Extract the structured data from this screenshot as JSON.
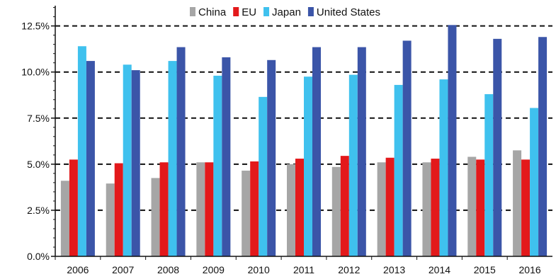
{
  "chart_data": {
    "type": "bar",
    "title": "",
    "xlabel": "",
    "ylabel": "",
    "categories": [
      "2006",
      "2007",
      "2008",
      "2009",
      "2010",
      "2011",
      "2012",
      "2013",
      "2014",
      "2015",
      "2016"
    ],
    "series": [
      {
        "name": "China",
        "color": "#a6a6a6",
        "values": [
          4.1,
          3.95,
          4.25,
          5.1,
          4.65,
          5.0,
          4.85,
          5.1,
          5.1,
          5.4,
          5.75
        ]
      },
      {
        "name": "EU",
        "color": "#e3191b",
        "values": [
          5.25,
          5.05,
          5.1,
          5.1,
          5.15,
          5.3,
          5.45,
          5.35,
          5.3,
          5.25,
          5.25
        ]
      },
      {
        "name": "Japan",
        "color": "#3fc1ee",
        "values": [
          11.4,
          10.4,
          10.6,
          9.8,
          8.65,
          9.75,
          9.85,
          9.3,
          9.6,
          8.8,
          8.05
        ]
      },
      {
        "name": "United States",
        "color": "#3b55a8",
        "values": [
          10.6,
          10.1,
          11.35,
          10.8,
          10.65,
          11.35,
          11.35,
          11.7,
          12.55,
          11.8,
          11.9
        ]
      }
    ],
    "ylim": [
      0,
      13.6
    ],
    "yticks": [
      0,
      2.5,
      5,
      7.5,
      10,
      12.5
    ],
    "ytick_labels": [
      "0.0%",
      "2.5%",
      "5.0%",
      "7.5%",
      "10.0%",
      "12.5%"
    ],
    "legend_position": "top-center",
    "grid": "horizontal-dashed"
  }
}
